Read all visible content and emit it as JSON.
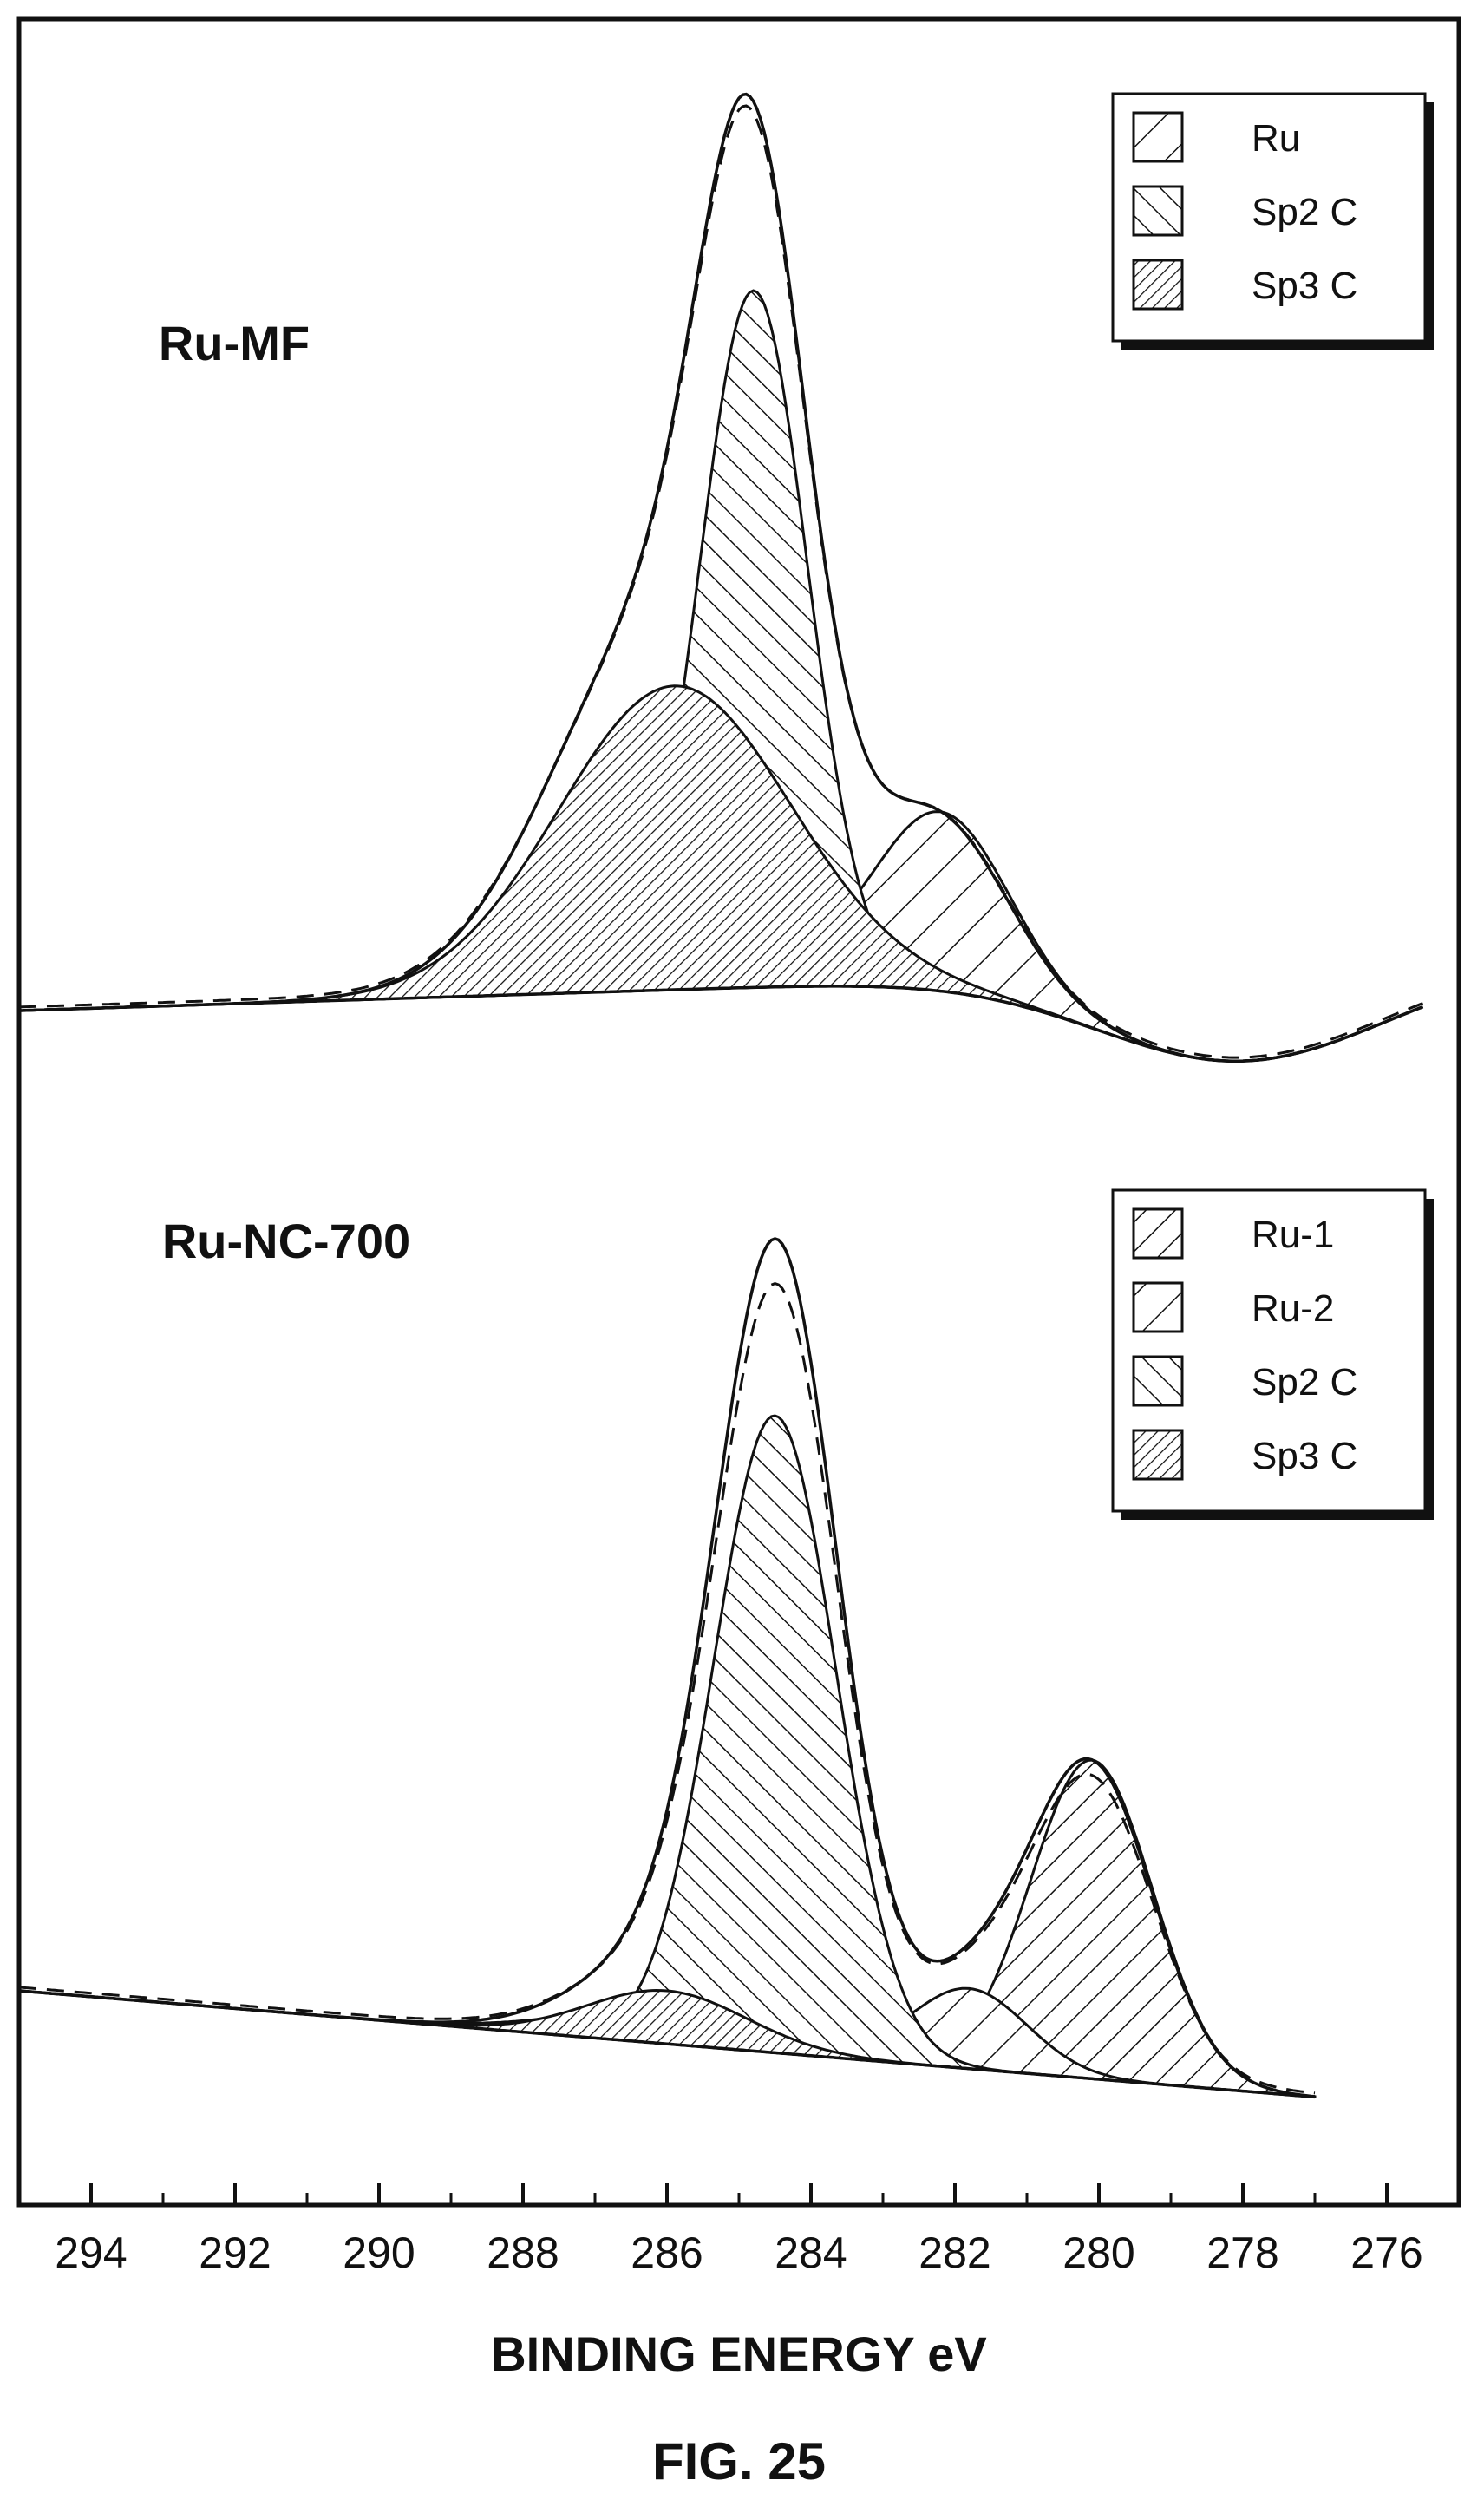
{
  "figure_label": "FIG. 25",
  "chart_data": {
    "type": "line",
    "xlabel": "BINDING ENERGY eV",
    "x_reversed": true,
    "xlim": [
      295,
      275
    ],
    "xticks": [
      294,
      292,
      290,
      288,
      286,
      284,
      282,
      280,
      278,
      276
    ],
    "grid": false,
    "y_axis_labeled": false,
    "panels": [
      {
        "title": "Ru-MF",
        "legend_position": "top-right",
        "legend": [
          {
            "name": "Ru",
            "pattern": "hatch-forward-sparse"
          },
          {
            "name": "Sp2  C",
            "pattern": "hatch-back"
          },
          {
            "name": "Sp3  C",
            "pattern": "hatch-forward-dense"
          }
        ],
        "baseline": {
          "start_x": 295,
          "end_x": 275.5,
          "level_left": 0.0,
          "level_right": 0.05,
          "dip_x": 278.0,
          "dip_depth": -0.1
        },
        "components": [
          {
            "name": "Ru",
            "peaks": [
              {
                "center": 286.4,
                "height": 0.13,
                "width": 1.3
              },
              {
                "center": 282.2,
                "height": 0.2,
                "width": 0.95
              }
            ],
            "pattern": "hatch-forward-sparse"
          },
          {
            "name": "Sp2  C",
            "peaks": [
              {
                "center": 284.8,
                "height": 0.78,
                "width": 0.75
              }
            ],
            "pattern": "hatch-back"
          },
          {
            "name": "Sp3  C",
            "peaks": [
              {
                "center": 285.9,
                "height": 0.34,
                "width": 1.6
              }
            ],
            "pattern": "hatch-forward-dense"
          }
        ],
        "envelope_peak": {
          "x": 284.9,
          "height": 1.0
        },
        "fit_line_dashed": true
      },
      {
        "title": "Ru-NC-700",
        "legend_position": "top-right",
        "legend": [
          {
            "name": "Ru-1",
            "pattern": "hatch-forward"
          },
          {
            "name": "Ru-2",
            "pattern": "hatch-forward-sparse"
          },
          {
            "name": "Sp2  C",
            "pattern": "hatch-back"
          },
          {
            "name": "Sp3  C",
            "pattern": "hatch-forward-dense"
          }
        ],
        "baseline": {
          "start_x": 295,
          "end_x": 277.0,
          "level_left": 0.0,
          "level_right": -0.12
        },
        "components": [
          {
            "name": "Ru-1",
            "peaks": [
              {
                "center": 284.3,
                "height": 0.18,
                "width": 0.8
              },
              {
                "center": 280.1,
                "height": 0.36,
                "width": 0.85
              }
            ],
            "pattern": "hatch-forward"
          },
          {
            "name": "Ru-2",
            "peaks": [
              {
                "center": 285.9,
                "height": 0.04,
                "width": 1.4
              },
              {
                "center": 281.8,
                "height": 0.09,
                "width": 0.8
              }
            ],
            "pattern": "hatch-forward-sparse"
          },
          {
            "name": "Sp2  C",
            "peaks": [
              {
                "center": 284.5,
                "height": 0.72,
                "width": 0.85
              }
            ],
            "pattern": "hatch-back"
          },
          {
            "name": "Sp3  C",
            "peaks": [
              {
                "center": 286.0,
                "height": 0.06,
                "width": 1.1
              }
            ],
            "pattern": "hatch-forward-dense"
          }
        ],
        "envelope_peak": {
          "x": 284.4,
          "height": 0.92
        },
        "fit_line_dashed": true
      }
    ]
  }
}
